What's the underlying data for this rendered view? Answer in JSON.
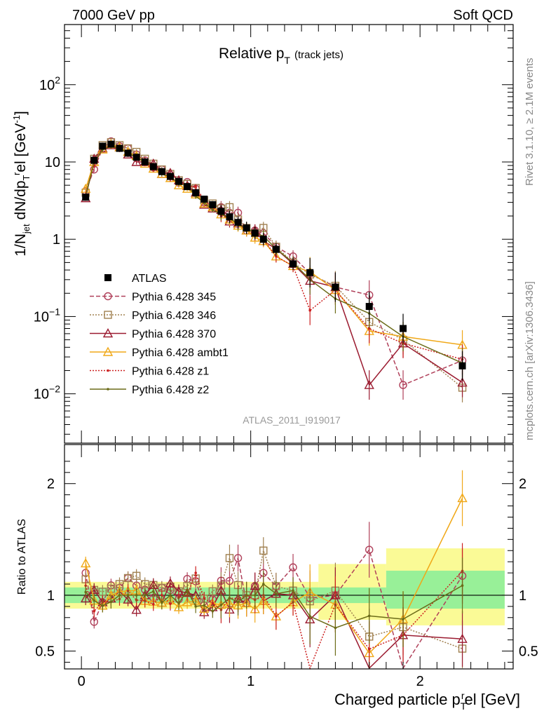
{
  "header": {
    "left": "7000 GeV pp",
    "right": "Soft QCD"
  },
  "side_labels": {
    "top": "Rivet 3.1.10, ≥ 2.1M events",
    "bottom": "mcplots.cern.ch [arXiv:1306.3436]"
  },
  "analysis_id": "ATLAS_2011_I919017",
  "colors": {
    "ATLAS": "#000000",
    "p345": "#b0405a",
    "p346": "#a08050",
    "p370": "#9b1b30",
    "ambt1": "#f0a818",
    "z1": "#cc2020",
    "z2": "#6b6b18",
    "band_inner": "#98f098",
    "band_outer": "#fafa96"
  },
  "chart_data": [
    {
      "type": "line",
      "title": "Relative p_T (track jets)",
      "title_main": "Relative p",
      "title_sub": "T",
      "title_tail": "(track jets)",
      "ylabel": "1/N_jet dN/dp_T^rel [GeV^-1]",
      "xlabel": "Charged particle p_T^rel [GeV]",
      "yscale": "log",
      "xlim": [
        -0.1,
        2.55
      ],
      "ylim": [
        0.0023,
        600
      ],
      "y_ticks": [
        "10^-2",
        "10^-1",
        "1",
        "10",
        "10^2"
      ],
      "x_ticks": [
        "0",
        "1",
        "2"
      ],
      "legend_position": "middle-left",
      "grid": false,
      "x": [
        0.025,
        0.075,
        0.125,
        0.175,
        0.225,
        0.275,
        0.325,
        0.375,
        0.425,
        0.475,
        0.525,
        0.575,
        0.625,
        0.675,
        0.725,
        0.775,
        0.825,
        0.875,
        0.925,
        0.975,
        1.025,
        1.075,
        1.15,
        1.25,
        1.35,
        1.5,
        1.7,
        1.9,
        2.25
      ],
      "series": [
        {
          "name": "ATLAS",
          "key": "ATLAS",
          "style": "data",
          "values": [
            3.5,
            10.5,
            16.0,
            17.0,
            15.0,
            13.0,
            11.5,
            10.0,
            8.7,
            7.5,
            6.5,
            5.6,
            4.8,
            4.0,
            3.3,
            2.8,
            2.3,
            1.95,
            1.65,
            1.4,
            1.2,
            1.0,
            0.74,
            0.48,
            0.37,
            0.24,
            0.135,
            0.07,
            0.023
          ]
        },
        {
          "name": "Pythia 6.428 345",
          "key": "p345",
          "style": "circle-dash",
          "values": [
            4.2,
            8.0,
            15.0,
            18.5,
            16.0,
            15.0,
            12.5,
            10.5,
            8.5,
            8.0,
            6.8,
            5.4,
            5.5,
            4.5,
            3.0,
            2.7,
            2.6,
            2.2,
            2.2,
            1.3,
            1.3,
            1.2,
            0.8,
            0.6,
            0.36,
            0.24,
            0.19,
            0.013,
            0.027
          ]
        },
        {
          "name": "Pythia 6.428 346",
          "key": "p346",
          "style": "square-dot",
          "values": [
            4.0,
            11.0,
            16.5,
            18.0,
            16.5,
            15.0,
            13.5,
            11.0,
            9.5,
            8.0,
            7.0,
            5.8,
            5.2,
            4.6,
            3.2,
            2.9,
            2.5,
            2.6,
            1.8,
            1.4,
            1.2,
            1.4,
            0.8,
            0.5,
            0.35,
            0.25,
            0.085,
            0.05,
            0.012
          ]
        },
        {
          "name": "Pythia 6.428 370",
          "key": "p370",
          "style": "triangle-solid",
          "values": [
            3.4,
            11.0,
            15.0,
            16.5,
            15.5,
            12.5,
            10.0,
            10.0,
            9.5,
            7.0,
            7.2,
            5.8,
            4.9,
            4.0,
            2.8,
            2.5,
            2.4,
            1.7,
            1.6,
            1.3,
            1.3,
            0.95,
            0.75,
            0.48,
            0.29,
            0.24,
            0.013,
            0.045,
            0.014
          ]
        },
        {
          "name": "Pythia 6.428 ambt1",
          "key": "ambt1",
          "style": "triangle-amber",
          "values": [
            4.5,
            10.0,
            14.5,
            17.0,
            15.5,
            13.5,
            12.0,
            9.5,
            8.2,
            7.0,
            6.2,
            5.0,
            4.5,
            3.8,
            2.9,
            2.6,
            2.1,
            1.8,
            1.5,
            1.3,
            1.05,
            0.95,
            0.6,
            0.45,
            0.38,
            0.22,
            0.065,
            0.055,
            0.043
          ]
        },
        {
          "name": "Pythia 6.428 z1",
          "key": "z1",
          "style": "dot-dotted",
          "values": [
            3.8,
            9.0,
            15.0,
            16.0,
            14.5,
            13.5,
            11.0,
            9.5,
            8.0,
            7.5,
            6.0,
            5.5,
            4.8,
            4.8,
            3.2,
            2.6,
            2.0,
            1.9,
            1.6,
            1.4,
            1.15,
            1.0,
            0.6,
            0.45,
            0.12,
            0.22,
            0.07,
            0.045,
            0.028
          ]
        },
        {
          "name": "Pythia 6.428 z2",
          "key": "z2",
          "style": "dot-solid",
          "values": [
            3.6,
            10.0,
            14.5,
            16.0,
            15.0,
            13.0,
            11.5,
            10.0,
            9.0,
            7.0,
            6.5,
            5.2,
            5.0,
            3.6,
            3.0,
            2.4,
            2.1,
            1.9,
            1.55,
            1.4,
            1.2,
            1.1,
            0.75,
            0.5,
            0.3,
            0.17,
            0.11,
            0.055,
            0.025
          ]
        }
      ]
    },
    {
      "type": "line",
      "ylabel": "Ratio to ATLAS",
      "xlim": [
        -0.1,
        2.55
      ],
      "ylim": [
        0.34,
        2.35
      ],
      "y_ticks": [
        "0.5",
        "1",
        "2"
      ],
      "x_ticks": [
        "0",
        "1",
        "2"
      ],
      "band_inner": [
        [
          -0.1,
          1.8,
          0.93,
          1.07
        ],
        [
          1.8,
          2.5,
          0.88,
          1.22
        ]
      ],
      "band_outer": [
        [
          -0.1,
          1.4,
          0.88,
          1.12
        ],
        [
          1.4,
          1.8,
          0.78,
          1.28
        ],
        [
          1.8,
          2.5,
          0.73,
          1.42
        ]
      ]
    }
  ]
}
